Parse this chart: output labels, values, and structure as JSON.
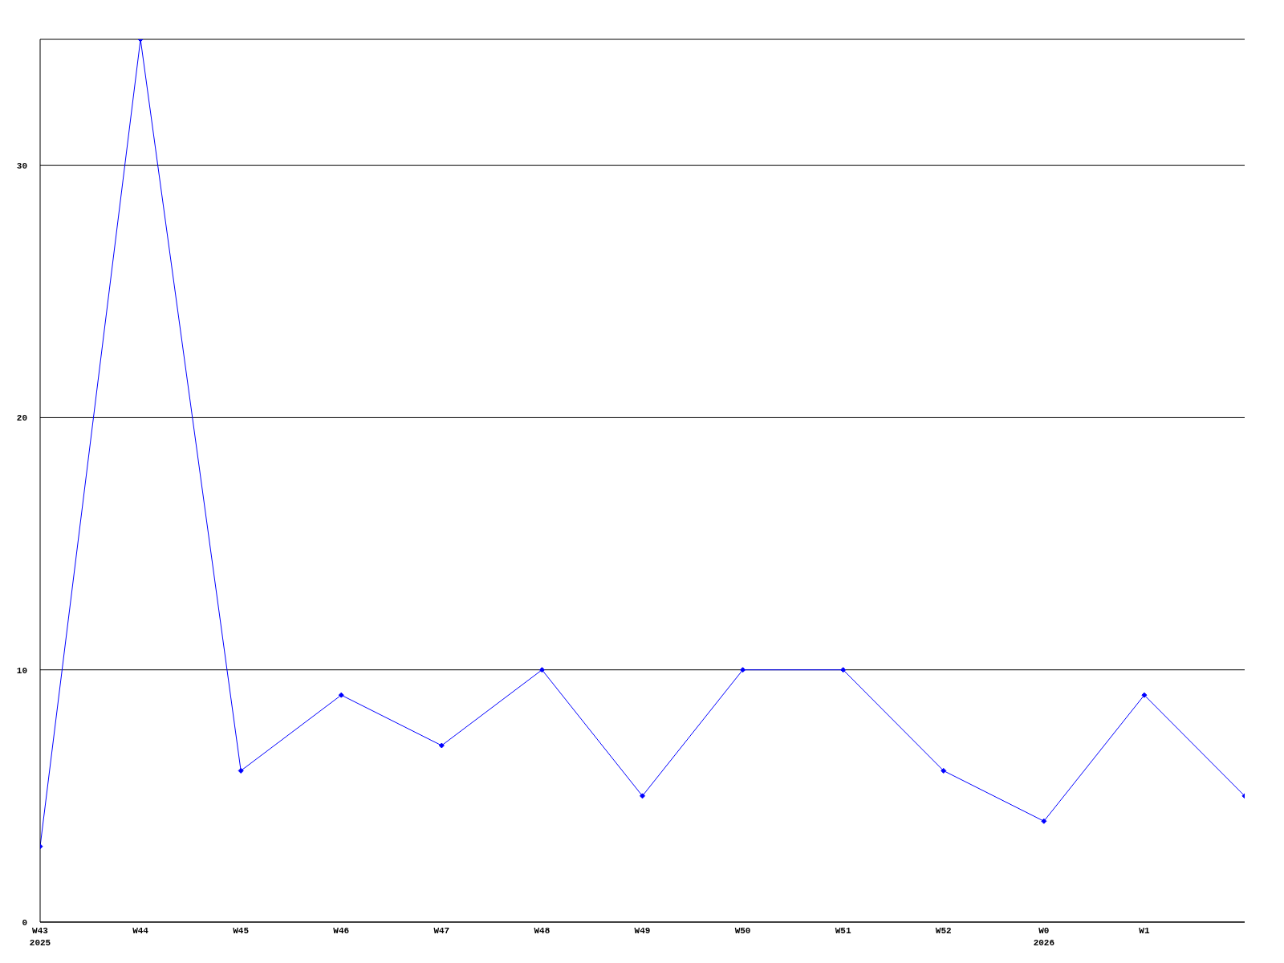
{
  "chart_data": {
    "type": "line",
    "categories": [
      "W43\n2025",
      "W44",
      "W45",
      "W46",
      "W47",
      "W48",
      "W49",
      "W50",
      "W51",
      "W52",
      "W0\n2026",
      "W1",
      null
    ],
    "series": [
      {
        "color": "#0000ff",
        "values": [
          3,
          35,
          6,
          9,
          7,
          10,
          5,
          10,
          10,
          6,
          4,
          9,
          5
        ]
      }
    ],
    "ylim": [
      0,
      35
    ],
    "yticks": [
      0,
      10,
      20,
      30
    ],
    "grid": "y",
    "marker": "diamond",
    "line_style": "solid"
  }
}
